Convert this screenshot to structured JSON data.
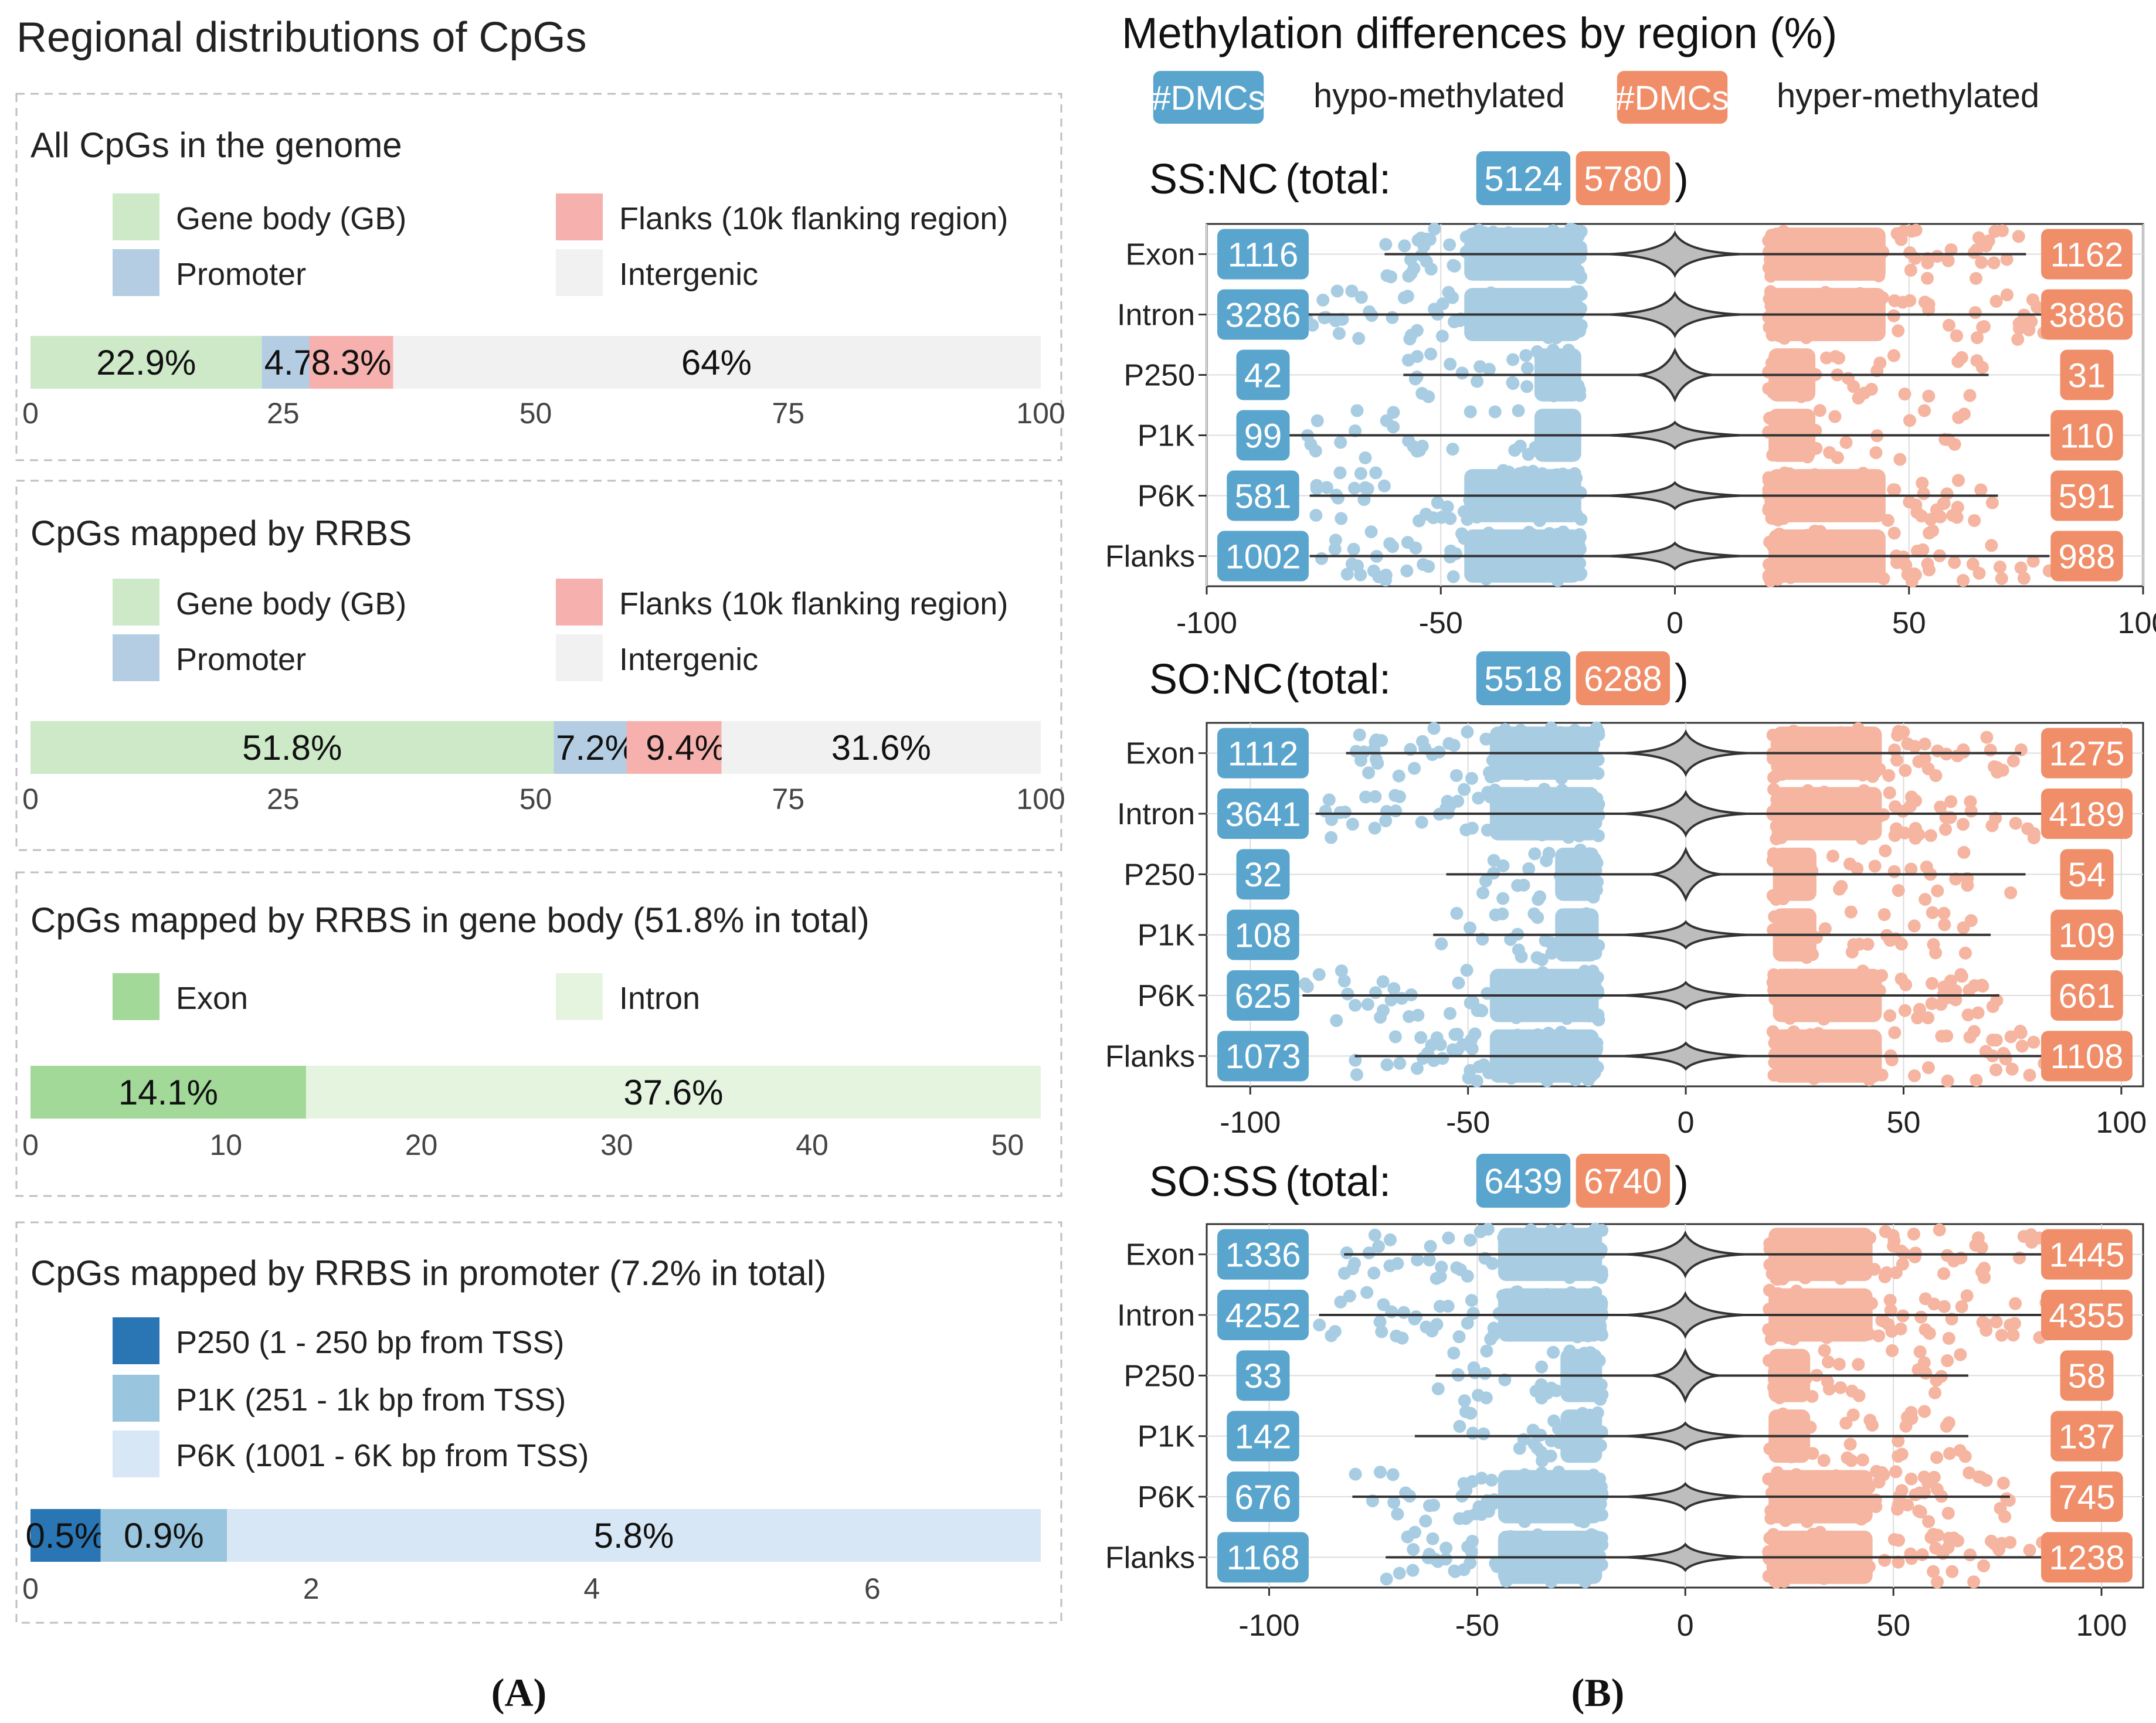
{
  "panel_a": {
    "title": "Regional distributions of CpGs",
    "sub_label": "(A)"
  },
  "panel_b": {
    "title": "Methylation differences by region (%)",
    "sub_label": "(B)",
    "legend": {
      "hypo_badge": "#DMCs",
      "hypo_text": "hypo-methylated",
      "hyper_badge": "#DMCs",
      "hyper_text": "hyper-methylated"
    }
  },
  "colors": {
    "gene_body": "#cde9c8",
    "promoter": "#b4cde2",
    "flanks": "#f6b1ae",
    "intergenic": "#f1f1f1",
    "exon": "#a2d898",
    "intron": "#e4f4df",
    "p250": "#2a75b3",
    "p1k": "#9ac5de",
    "p6k": "#d8e7f5",
    "hypo_badge": "#5aa5cd",
    "hyper_badge": "#ef8e69",
    "hypo_points": "#a8cde3",
    "hyper_points": "#f5b5a0",
    "violin": "#444444"
  },
  "chart_data": [
    {
      "type": "stacked-bar",
      "title": "All CpGs in the genome",
      "legend": [
        {
          "label": "Gene body (GB)",
          "color": "#cde9c8"
        },
        {
          "label": "Flanks (10k flanking region)",
          "color": "#f6b1ae"
        },
        {
          "label": "Promoter",
          "color": "#b4cde2"
        },
        {
          "label": "Intergenic",
          "color": "#f1f1f1"
        }
      ],
      "segments": [
        {
          "name": "Gene body",
          "value": 22.9,
          "label": "22.9%",
          "color": "#cde9c8"
        },
        {
          "name": "Promoter",
          "value": 4.7,
          "label": "4.7%",
          "color": "#b4cde2"
        },
        {
          "name": "Flanks",
          "value": 8.3,
          "label": "8.3%",
          "color": "#f6b1ae"
        },
        {
          "name": "Intergenic",
          "value": 64,
          "label": "64%",
          "color": "#f1f1f1"
        }
      ],
      "xlim": [
        0,
        100
      ],
      "ticks": [
        0,
        25,
        50,
        75,
        100
      ]
    },
    {
      "type": "stacked-bar",
      "title": "CpGs mapped by RRBS",
      "legend": [
        {
          "label": "Gene body (GB)",
          "color": "#cde9c8"
        },
        {
          "label": "Flanks (10k flanking region)",
          "color": "#f6b1ae"
        },
        {
          "label": "Promoter",
          "color": "#b4cde2"
        },
        {
          "label": "Intergenic",
          "color": "#f1f1f1"
        }
      ],
      "segments": [
        {
          "name": "Gene body",
          "value": 51.8,
          "label": "51.8%",
          "color": "#cde9c8"
        },
        {
          "name": "Promoter",
          "value": 7.2,
          "label": "7.2%",
          "color": "#b4cde2"
        },
        {
          "name": "Flanks",
          "value": 9.4,
          "label": "9.4%",
          "color": "#f6b1ae"
        },
        {
          "name": "Intergenic",
          "value": 31.6,
          "label": "31.6%",
          "color": "#f1f1f1"
        }
      ],
      "xlim": [
        0,
        100
      ],
      "ticks": [
        0,
        25,
        50,
        75,
        100
      ]
    },
    {
      "type": "stacked-bar",
      "title": "CpGs mapped by RRBS in gene body (51.8% in total)",
      "legend": [
        {
          "label": "Exon",
          "color": "#a2d898"
        },
        {
          "label": "Intron",
          "color": "#e4f4df"
        }
      ],
      "segments": [
        {
          "name": "Exon",
          "value": 14.1,
          "label": "14.1%",
          "color": "#a2d898"
        },
        {
          "name": "Intron",
          "value": 37.6,
          "label": "37.6%",
          "color": "#e4f4df"
        }
      ],
      "xlim": [
        0,
        51.7
      ],
      "ticks": [
        0,
        10,
        20,
        30,
        40,
        50
      ]
    },
    {
      "type": "stacked-bar",
      "title": "CpGs mapped by RRBS in promoter (7.2% in total)",
      "legend": [
        {
          "label": "P250 (1 - 250 bp from TSS)",
          "color": "#2a75b3"
        },
        {
          "label": "P1K (251 - 1k bp from TSS)",
          "color": "#9ac5de"
        },
        {
          "label": "P6K (1001 - 6K bp from TSS)",
          "color": "#d8e7f5"
        }
      ],
      "segments": [
        {
          "name": "P250",
          "value": 0.5,
          "label": "0.5%",
          "color": "#2a75b3"
        },
        {
          "name": "P1K",
          "value": 0.9,
          "label": "0.9%",
          "color": "#9ac5de"
        },
        {
          "name": "P6K",
          "value": 5.8,
          "label": "5.8%",
          "color": "#d8e7f5"
        }
      ],
      "xlim": [
        0,
        7.2
      ],
      "ticks": [
        0,
        2,
        4,
        6
      ]
    },
    {
      "type": "scatter",
      "title": "SS:NC",
      "total_prefix": "(total:",
      "total_suffix": ")",
      "total_hypo": "5124",
      "total_hyper": "5780",
      "xlim": [
        -100,
        100
      ],
      "ticks": [
        "-100",
        "-50",
        "0",
        "50",
        "100"
      ],
      "tick_values": [
        -100,
        -50,
        0,
        50,
        100
      ],
      "rows": [
        {
          "region": "Exon",
          "hypo": "1116",
          "hyper": "1162",
          "hypo_min": -62,
          "hyper_max": 75
        },
        {
          "region": "Intron",
          "hypo": "3286",
          "hyper": "3886",
          "hypo_min": -80,
          "hyper_max": 80
        },
        {
          "region": "P250",
          "hypo": "42",
          "hyper": "31",
          "hypo_min": -58,
          "hyper_max": 67
        },
        {
          "region": "P1K",
          "hypo": "99",
          "hyper": "110",
          "hypo_min": -88,
          "hyper_max": 80
        },
        {
          "region": "P6K",
          "hypo": "581",
          "hyper": "591",
          "hypo_min": -78,
          "hyper_max": 69
        },
        {
          "region": "Flanks",
          "hypo": "1002",
          "hyper": "988",
          "hypo_min": -78,
          "hyper_max": 80
        }
      ]
    },
    {
      "type": "scatter",
      "title": "SO:NC",
      "total_prefix": "(total:",
      "total_suffix": ")",
      "total_hypo": "5518",
      "total_hyper": "6288",
      "xlim": [
        -110,
        105
      ],
      "ticks": [
        "-100",
        "-50",
        "0",
        "50",
        "100"
      ],
      "tick_values": [
        -100,
        -50,
        0,
        50,
        100
      ],
      "rows": [
        {
          "region": "Exon",
          "hypo": "1112",
          "hyper": "1275",
          "hypo_min": -78,
          "hyper_max": 77
        },
        {
          "region": "Intron",
          "hypo": "3641",
          "hyper": "4189",
          "hypo_min": -85,
          "hyper_max": 82
        },
        {
          "region": "P250",
          "hypo": "32",
          "hyper": "54",
          "hypo_min": -55,
          "hyper_max": 78
        },
        {
          "region": "P1K",
          "hypo": "108",
          "hyper": "109",
          "hypo_min": -58,
          "hyper_max": 70
        },
        {
          "region": "P6K",
          "hypo": "625",
          "hyper": "661",
          "hypo_min": -88,
          "hyper_max": 72
        },
        {
          "region": "Flanks",
          "hypo": "1073",
          "hyper": "1108",
          "hypo_min": -76,
          "hyper_max": 84
        }
      ]
    },
    {
      "type": "scatter",
      "title": "SO:SS",
      "total_prefix": "(total:",
      "total_suffix": ")",
      "total_hypo": "6439",
      "total_hyper": "6740",
      "xlim": [
        -115,
        110
      ],
      "ticks": [
        "-100",
        "-50",
        "0",
        "50",
        "100"
      ],
      "tick_values": [
        -100,
        -50,
        0,
        50,
        100
      ],
      "rows": [
        {
          "region": "Exon",
          "hypo": "1336",
          "hyper": "1445",
          "hypo_min": -82,
          "hyper_max": 86
        },
        {
          "region": "Intron",
          "hypo": "4252",
          "hyper": "4355",
          "hypo_min": -88,
          "hyper_max": 90
        },
        {
          "region": "P250",
          "hypo": "33",
          "hyper": "58",
          "hypo_min": -60,
          "hyper_max": 68
        },
        {
          "region": "P1K",
          "hypo": "142",
          "hyper": "137",
          "hypo_min": -65,
          "hyper_max": 68
        },
        {
          "region": "P6K",
          "hypo": "676",
          "hyper": "745",
          "hypo_min": -80,
          "hyper_max": 78
        },
        {
          "region": "Flanks",
          "hypo": "1168",
          "hyper": "1238",
          "hypo_min": -72,
          "hyper_max": 86
        }
      ]
    }
  ]
}
